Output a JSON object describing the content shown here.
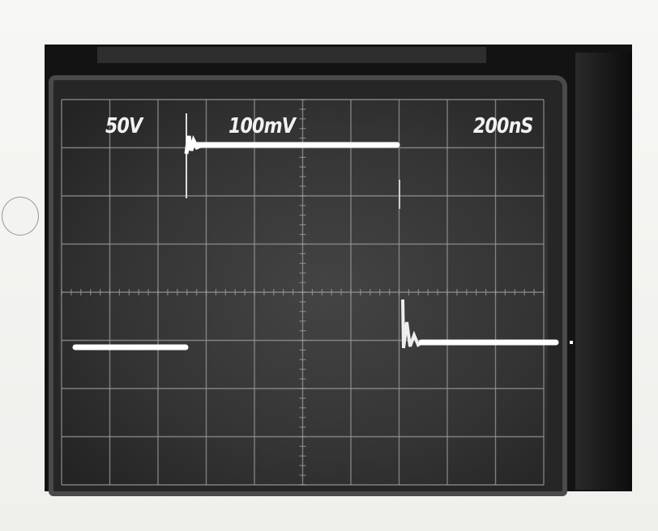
{
  "screen_labels": {
    "ch1_scale": "50V",
    "ch2_scale": "100mV",
    "timebase": "200nS"
  },
  "colors": {
    "trace": "#ffffff",
    "graticule": "#9a9a9a",
    "screen": "#3a3a3a",
    "paper": "#f4f4f2"
  }
}
